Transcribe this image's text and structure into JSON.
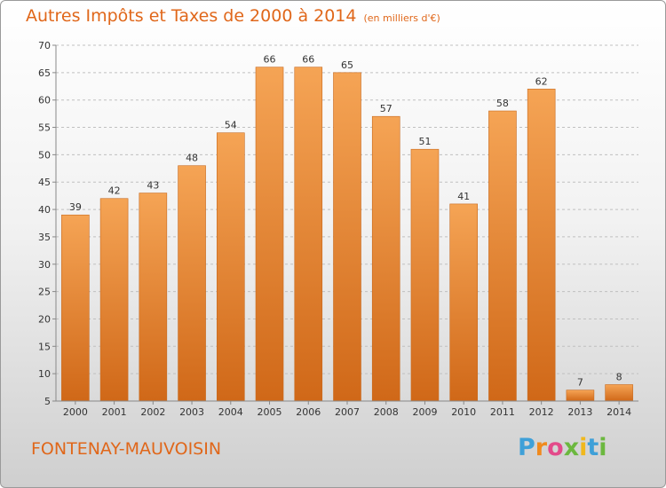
{
  "header": {
    "title": "Autres Impôts et Taxes de 2000 à 2014",
    "unit": "(en milliers d'€)"
  },
  "footer": {
    "city": "FONTENAY-MAUVOISIN",
    "logo": "Proxiti"
  },
  "colors": {
    "bar": "#f0a050",
    "bar_dark": "#d06a18",
    "title": "#e0671a",
    "grid": "#c0c0c0"
  },
  "chart_data": {
    "type": "bar",
    "title": "Autres Impôts et Taxes de 2000 à 2014",
    "xlabel": "",
    "ylabel": "",
    "categories": [
      "2000",
      "2001",
      "2002",
      "2003",
      "2004",
      "2005",
      "2006",
      "2007",
      "2008",
      "2009",
      "2010",
      "2011",
      "2012",
      "2013",
      "2014"
    ],
    "values": [
      39,
      42,
      43,
      48,
      54,
      66,
      66,
      65,
      57,
      51,
      41,
      58,
      62,
      7,
      8
    ],
    "ylim": [
      5,
      70
    ],
    "yticks": [
      5,
      10,
      15,
      20,
      25,
      30,
      35,
      40,
      45,
      50,
      55,
      60,
      65,
      70
    ],
    "grid": true
  }
}
